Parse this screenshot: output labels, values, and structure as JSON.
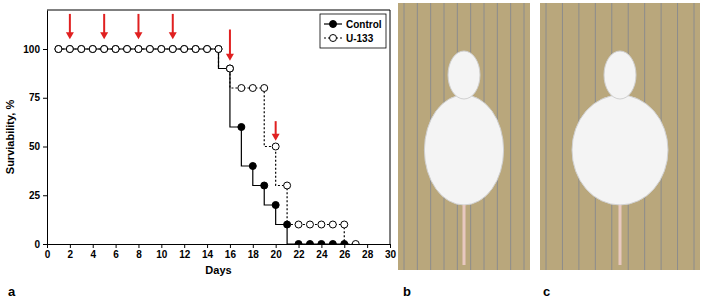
{
  "panel_labels": [
    "a",
    "b",
    "c"
  ],
  "chart_data": {
    "type": "line",
    "x_label": "Days",
    "y_label": "Surviability, %",
    "xlim": [
      0,
      30
    ],
    "ylim": [
      0,
      120
    ],
    "xticks": [
      0,
      2,
      4,
      6,
      8,
      10,
      12,
      14,
      16,
      18,
      20,
      22,
      24,
      26,
      28,
      30
    ],
    "yticks": [
      0,
      25,
      50,
      75,
      100
    ],
    "legend": "upper right",
    "x": [
      1,
      2,
      3,
      4,
      5,
      6,
      7,
      8,
      9,
      10,
      11,
      12,
      13,
      14,
      15,
      16,
      17,
      18,
      19,
      20,
      21,
      22,
      23,
      24,
      25,
      26,
      27
    ],
    "series": [
      {
        "name": "Control",
        "color": "#000000",
        "marker": "filled_circle",
        "line_style": "solid",
        "values": [
          100,
          100,
          100,
          100,
          100,
          100,
          100,
          100,
          100,
          100,
          100,
          100,
          100,
          100,
          100,
          90,
          60,
          40,
          30,
          20,
          10,
          0,
          0,
          0,
          0,
          0,
          null
        ]
      },
      {
        "name": "U-133",
        "color": "#000000",
        "marker": "open_circle",
        "line_style": "dotted",
        "values": [
          100,
          100,
          100,
          100,
          100,
          100,
          100,
          100,
          100,
          100,
          100,
          100,
          100,
          100,
          100,
          90,
          80,
          80,
          80,
          50,
          30,
          10,
          10,
          10,
          10,
          10,
          0
        ]
      }
    ],
    "arrows": [
      {
        "x": 2,
        "y_start": 118,
        "y_end": 105
      },
      {
        "x": 5,
        "y_start": 118,
        "y_end": 105
      },
      {
        "x": 8,
        "y_start": 118,
        "y_end": 105
      },
      {
        "x": 11,
        "y_start": 118,
        "y_end": 105
      },
      {
        "x": 16,
        "y_start": 110,
        "y_end": 94
      },
      {
        "x": 20,
        "y_start": 63,
        "y_end": 53
      }
    ],
    "arrow_color": "#e02020"
  }
}
